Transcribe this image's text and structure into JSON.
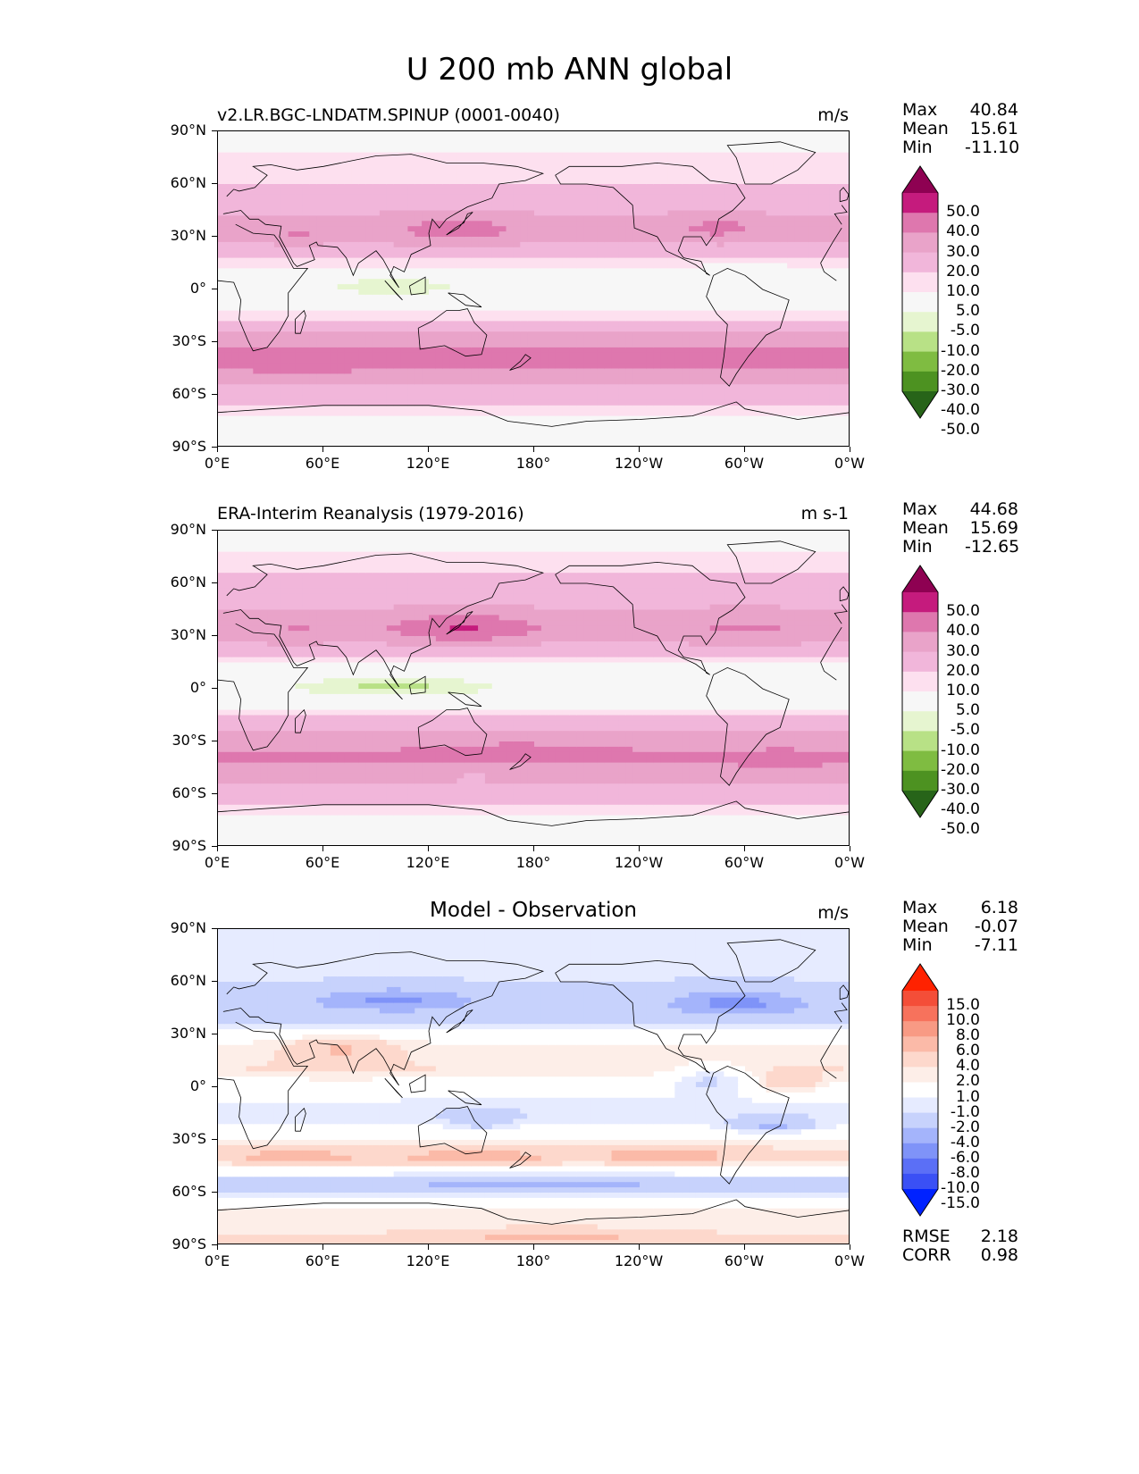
{
  "figure": {
    "title": "U 200 mb ANN global"
  },
  "axes": {
    "lat_ticks": [
      "90°N",
      "60°N",
      "30°N",
      "0°",
      "30°S",
      "60°S",
      "90°S"
    ],
    "lon_ticks": [
      "0°E",
      "60°E",
      "120°E",
      "180°",
      "120°W",
      "60°W",
      "0°W"
    ]
  },
  "panels": [
    {
      "title": "v2.LR.BGC-LNDATM.SPINUP (0001-0040)",
      "units": "m/s",
      "stats": [
        {
          "k": "Max",
          "v": "40.84"
        },
        {
          "k": "Mean",
          "v": "15.61"
        },
        {
          "k": "Min",
          "v": "-11.10"
        }
      ]
    },
    {
      "title": "ERA-Interim Reanalysis (1979-2016)",
      "units": "m s-1",
      "stats": [
        {
          "k": "Max",
          "v": "44.68"
        },
        {
          "k": "Mean",
          "v": "15.69"
        },
        {
          "k": "Min",
          "v": "-12.65"
        }
      ]
    },
    {
      "title": "Model - Observation",
      "units": "m/s",
      "stats": [
        {
          "k": "Max",
          "v": "6.18"
        },
        {
          "k": "Mean",
          "v": "-0.07"
        },
        {
          "k": "Min",
          "v": "-7.11"
        }
      ],
      "extra_stats": [
        {
          "k": "RMSE",
          "v": "2.18"
        },
        {
          "k": "CORR",
          "v": "0.98"
        }
      ]
    }
  ],
  "colorbars": {
    "field": {
      "labels": [
        "50.0",
        "40.0",
        "30.0",
        "20.0",
        "10.0",
        "5.0",
        "-5.0",
        "-10.0",
        "-20.0",
        "-30.0",
        "-40.0",
        "-50.0"
      ],
      "colors": [
        "#8e0152",
        "#c51b7d",
        "#de77ae",
        "#e9a3c9",
        "#f1b6da",
        "#fde0ef",
        "#f7f7f7",
        "#e6f5d0",
        "#b8e186",
        "#7fbc41",
        "#4d9221",
        "#276419"
      ]
    },
    "diff": {
      "labels": [
        "15.0",
        "10.0",
        "8.0",
        "6.0",
        "4.0",
        "2.0",
        "1.0",
        "-1.0",
        "-2.0",
        "-4.0",
        "-6.0",
        "-8.0",
        "-10.0",
        "-15.0"
      ],
      "colors": [
        "#ff2200",
        "#f44e38",
        "#f7725c",
        "#f89a84",
        "#fbbaa8",
        "#fdd8cc",
        "#fdeee8",
        "#ffffff",
        "#e6ebff",
        "#c7d2fc",
        "#a4b4fb",
        "#7f93f8",
        "#5b6ff6",
        "#3a50f5",
        "#0022ff"
      ]
    }
  },
  "chart_data": [
    {
      "type": "heatmap",
      "title": "v2.LR.BGC-LNDATM.SPINUP (0001-0040)",
      "units": "m/s",
      "variable": "U 200 mb ANN",
      "lat_range": [
        -90,
        90
      ],
      "lon_range": [
        0,
        360
      ],
      "zonal_profile_lat": [
        85,
        60,
        45,
        35,
        30,
        20,
        10,
        0,
        -10,
        -20,
        -30,
        -40,
        -50,
        -60,
        -70,
        -80
      ],
      "zonal_profile_u": [
        3,
        10,
        18,
        25,
        24,
        12,
        2,
        -3,
        2,
        14,
        28,
        33,
        26,
        14,
        6,
        2
      ],
      "max": 40.84,
      "mean": 15.61,
      "min": -11.1
    },
    {
      "type": "heatmap",
      "title": "ERA-Interim Reanalysis (1979-2016)",
      "units": "m s-1",
      "variable": "U 200 mb ANN",
      "lat_range": [
        -90,
        90
      ],
      "lon_range": [
        0,
        360
      ],
      "zonal_profile_lat": [
        85,
        60,
        45,
        35,
        30,
        20,
        10,
        0,
        -10,
        -20,
        -30,
        -40,
        -50,
        -60,
        -70,
        -80
      ],
      "zonal_profile_u": [
        3,
        12,
        20,
        27,
        25,
        12,
        1,
        -4,
        2,
        15,
        27,
        31,
        25,
        15,
        6,
        2
      ],
      "max": 44.68,
      "mean": 15.69,
      "min": -12.65
    },
    {
      "type": "heatmap",
      "title": "Model - Observation",
      "units": "m/s",
      "lat_range": [
        -90,
        90
      ],
      "lon_range": [
        0,
        360
      ],
      "zonal_profile_lat": [
        80,
        60,
        45,
        35,
        25,
        10,
        0,
        -15,
        -30,
        -40,
        -55,
        -70,
        -85
      ],
      "zonal_profile_u": [
        -1.5,
        -2,
        -3,
        -2,
        1,
        2,
        0,
        -2,
        1,
        3,
        -3,
        1,
        2
      ],
      "max": 6.18,
      "mean": -0.07,
      "min": -7.11,
      "rmse": 2.18,
      "corr": 0.98
    }
  ]
}
